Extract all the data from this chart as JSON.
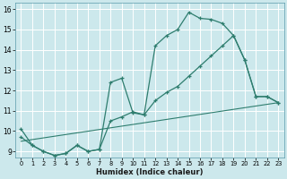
{
  "xlabel": "Humidex (Indice chaleur)",
  "xlim": [
    -0.5,
    23.5
  ],
  "ylim": [
    8.7,
    16.3
  ],
  "xticks": [
    0,
    1,
    2,
    3,
    4,
    5,
    6,
    7,
    8,
    9,
    10,
    11,
    12,
    13,
    14,
    15,
    16,
    17,
    18,
    19,
    20,
    21,
    22,
    23
  ],
  "yticks": [
    9,
    10,
    11,
    12,
    13,
    14,
    15,
    16
  ],
  "bg_color": "#cce8ec",
  "grid_color": "#b0d4d8",
  "line_color": "#2e7d6e",
  "series_main": {
    "x": [
      0,
      1,
      2,
      3,
      4,
      5,
      6,
      7,
      8,
      9,
      10,
      11,
      12,
      13,
      14,
      15,
      16,
      17,
      18,
      19,
      20,
      21,
      22,
      23
    ],
    "y": [
      10.1,
      9.3,
      9.0,
      8.8,
      8.9,
      9.3,
      9.0,
      9.1,
      12.4,
      12.6,
      10.9,
      10.8,
      14.2,
      14.7,
      15.0,
      15.85,
      15.55,
      15.5,
      15.3,
      14.7,
      13.5,
      11.7,
      11.7,
      11.4
    ]
  },
  "series_mid": {
    "x": [
      0,
      1,
      2,
      3,
      4,
      5,
      6,
      7,
      8,
      9,
      10,
      11,
      12,
      13,
      14,
      15,
      16,
      17,
      18,
      19,
      20,
      21,
      22,
      23
    ],
    "y": [
      9.7,
      9.3,
      9.0,
      8.8,
      8.9,
      9.3,
      9.0,
      9.1,
      10.5,
      10.7,
      10.95,
      10.8,
      11.5,
      11.9,
      12.2,
      12.7,
      13.2,
      13.7,
      14.2,
      14.7,
      13.5,
      11.7,
      11.7,
      11.4
    ]
  },
  "series_base": {
    "x": [
      0,
      23
    ],
    "y": [
      9.5,
      11.4
    ]
  }
}
